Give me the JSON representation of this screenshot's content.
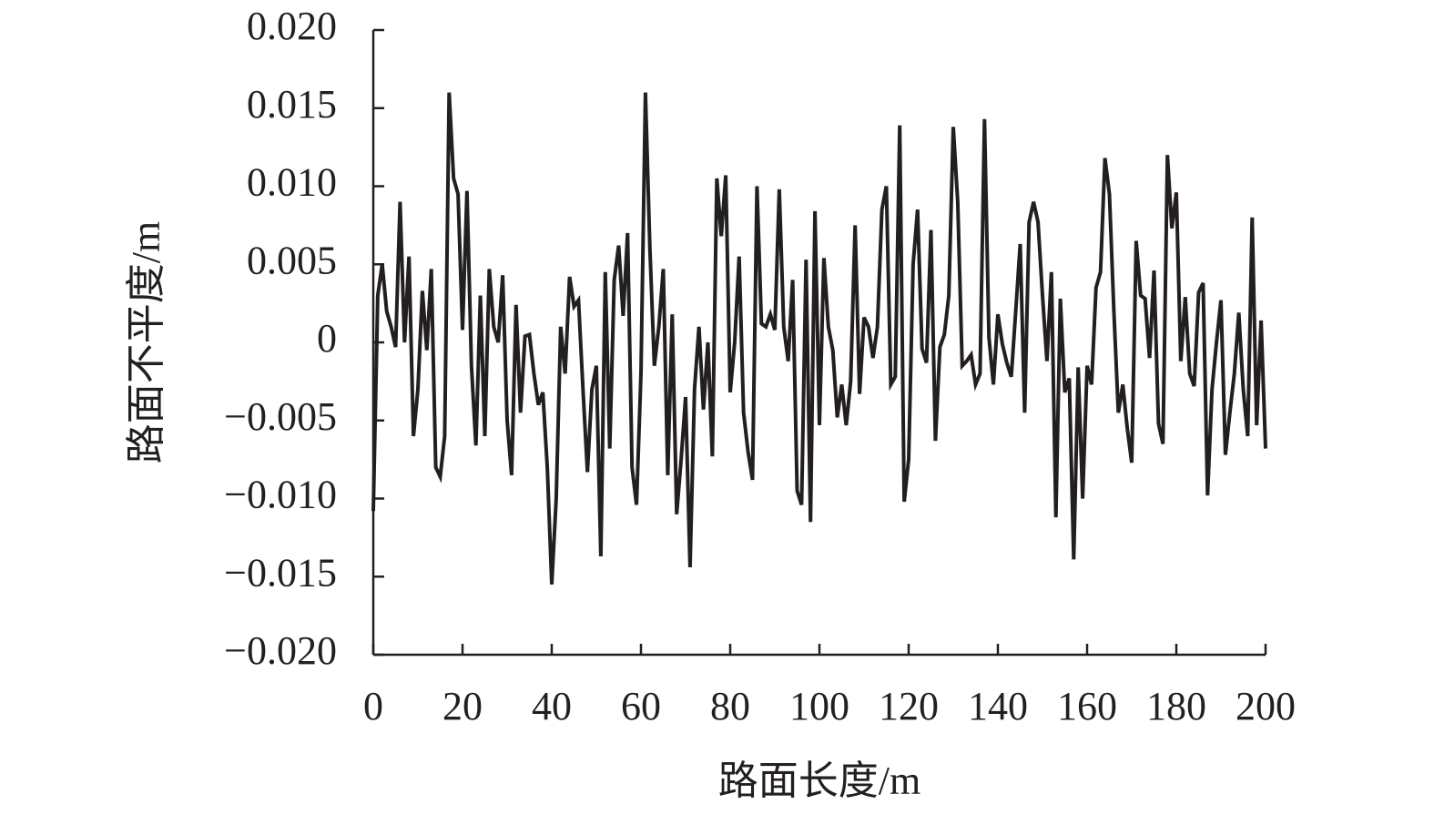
{
  "chart_data": {
    "type": "line",
    "x_label": "路面长度/m",
    "y_label": "路面不平度/m",
    "x": [
      0,
      1,
      2,
      3,
      4,
      5,
      6,
      7,
      8,
      9,
      10,
      11,
      12,
      13,
      14,
      15,
      16,
      17,
      18,
      19,
      20,
      21,
      22,
      23,
      24,
      25,
      26,
      27,
      28,
      29,
      30,
      31,
      32,
      33,
      34,
      35,
      36,
      37,
      38,
      39,
      40,
      41,
      42,
      43,
      44,
      45,
      46,
      47,
      48,
      49,
      50,
      51,
      52,
      53,
      54,
      55,
      56,
      57,
      58,
      59,
      60,
      61,
      62,
      63,
      64,
      65,
      66,
      67,
      68,
      69,
      70,
      71,
      72,
      73,
      74,
      75,
      76,
      77,
      78,
      79,
      80,
      81,
      82,
      83,
      84,
      85,
      86,
      87,
      88,
      89,
      90,
      91,
      92,
      93,
      94,
      95,
      96,
      97,
      98,
      99,
      100,
      101,
      102,
      103,
      104,
      105,
      106,
      107,
      108,
      109,
      110,
      111,
      112,
      113,
      114,
      115,
      116,
      117,
      118,
      119,
      120,
      121,
      122,
      123,
      124,
      125,
      126,
      127,
      128,
      129,
      130,
      131,
      132,
      133,
      134,
      135,
      136,
      137,
      138,
      139,
      140,
      141,
      142,
      143,
      144,
      145,
      146,
      147,
      148,
      149,
      150,
      151,
      152,
      153,
      154,
      155,
      156,
      157,
      158,
      159,
      160,
      161,
      162,
      163,
      164,
      165,
      166,
      167,
      168,
      169,
      170,
      171,
      172,
      173,
      174,
      175,
      176,
      177,
      178,
      179,
      180,
      181,
      182,
      183,
      184,
      185,
      186,
      187,
      188,
      189,
      190,
      191,
      192,
      193,
      194,
      195,
      196,
      197,
      198,
      199,
      200
    ],
    "series": [
      {
        "color": "#231f20",
        "values": [
          -0.0108,
          0.003,
          0.005,
          0.002,
          0.001,
          -0.0003,
          0.009,
          0,
          0.0055,
          -0.006,
          -0.003,
          0.0033,
          -0.0005,
          0.0047,
          -0.008,
          -0.0086,
          -0.006,
          0.016,
          0.0105,
          0.0095,
          0.0008,
          0.0097,
          -0.0015,
          -0.0066,
          0.003,
          -0.006,
          0.0047,
          0.001,
          0,
          0.0043,
          -0.005,
          -0.0085,
          0.0024,
          -0.0045,
          0.0004,
          0.0005,
          -0.002,
          -0.004,
          -0.0032,
          -0.008,
          -0.0155,
          -0.01,
          0.001,
          -0.002,
          0.0042,
          0.0023,
          0.0027,
          -0.003,
          -0.0083,
          -0.003,
          -0.0015,
          -0.0137,
          0.0045,
          -0.0068,
          0.004,
          0.0062,
          0.0017,
          0.007,
          -0.008,
          -0.0104,
          -0.002,
          0.016,
          0.006,
          -0.0015,
          0.001,
          0.0047,
          -0.0085,
          0.0018,
          -0.011,
          -0.0075,
          -0.0035,
          -0.0144,
          -0.003,
          0.001,
          -0.0043,
          0,
          -0.0073,
          0.0105,
          0.0068,
          0.0107,
          -0.0032,
          0,
          0.0055,
          -0.0045,
          -0.007,
          -0.0088,
          0.01,
          0.0012,
          0.001,
          0.0018,
          0.0008,
          0.0098,
          0.001,
          -0.0012,
          0.004,
          -0.0095,
          -0.0104,
          0.0053,
          -0.0115,
          0.0084,
          -0.0053,
          0.0054,
          0.001,
          -0.0005,
          -0.0048,
          -0.0027,
          -0.0053,
          -0.0025,
          0.0075,
          -0.0033,
          0.0016,
          0.001,
          -0.001,
          0.001,
          0.0085,
          0.01,
          -0.0027,
          -0.0022,
          0.0139,
          -0.0102,
          -0.0075,
          0.005,
          0.0085,
          -0.0004,
          -0.0013,
          0.0072,
          -0.0063,
          -0.0003,
          0.0005,
          0.003,
          0.0138,
          0.009,
          -0.0015,
          -0.0012,
          -0.0008,
          -0.0027,
          -0.002,
          0.0143,
          0.0003,
          -0.0027,
          0.0018,
          -0.0001,
          -0.0013,
          -0.0022,
          0.002,
          0.0063,
          -0.0045,
          0.0077,
          0.009,
          0.0077,
          0.003,
          -0.0012,
          0.0045,
          -0.0112,
          0.0028,
          -0.0032,
          -0.0023,
          -0.0139,
          -0.0016,
          -0.01,
          -0.0015,
          -0.0027,
          0.0035,
          0.0045,
          0.0118,
          0.0095,
          0.002,
          -0.0045,
          -0.0027,
          -0.0055,
          -0.0077,
          0.0065,
          0.003,
          0.0028,
          -0.001,
          0.0046,
          -0.0052,
          -0.0065,
          0.012,
          0.0073,
          0.0096,
          -0.0012,
          0.0029,
          -0.002,
          -0.0028,
          0.0032,
          0.0038,
          -0.0098,
          -0.003,
          0,
          0.0027,
          -0.0072,
          -0.0045,
          -0.002,
          0.0019,
          -0.003,
          -0.006,
          0.008,
          -0.0053,
          0.0014,
          -0.0068
        ]
      }
    ],
    "xlim": [
      0,
      200
    ],
    "xticks": [
      0,
      20,
      40,
      60,
      80,
      100,
      120,
      140,
      160,
      180,
      200
    ],
    "ylim": [
      -0.02,
      0.02
    ],
    "yticks": [
      {
        "value": -0.02,
        "label": "−0.020"
      },
      {
        "value": -0.015,
        "label": "−0.015"
      },
      {
        "value": -0.01,
        "label": "−0.010"
      },
      {
        "value": -0.005,
        "label": "−0.005"
      },
      0,
      {
        "value": 0.005,
        "label": "0.005"
      },
      {
        "value": 0.01,
        "label": "0.010"
      },
      {
        "value": 0.015,
        "label": "0.015"
      },
      {
        "value": 0.02,
        "label": "0.020"
      }
    ]
  }
}
